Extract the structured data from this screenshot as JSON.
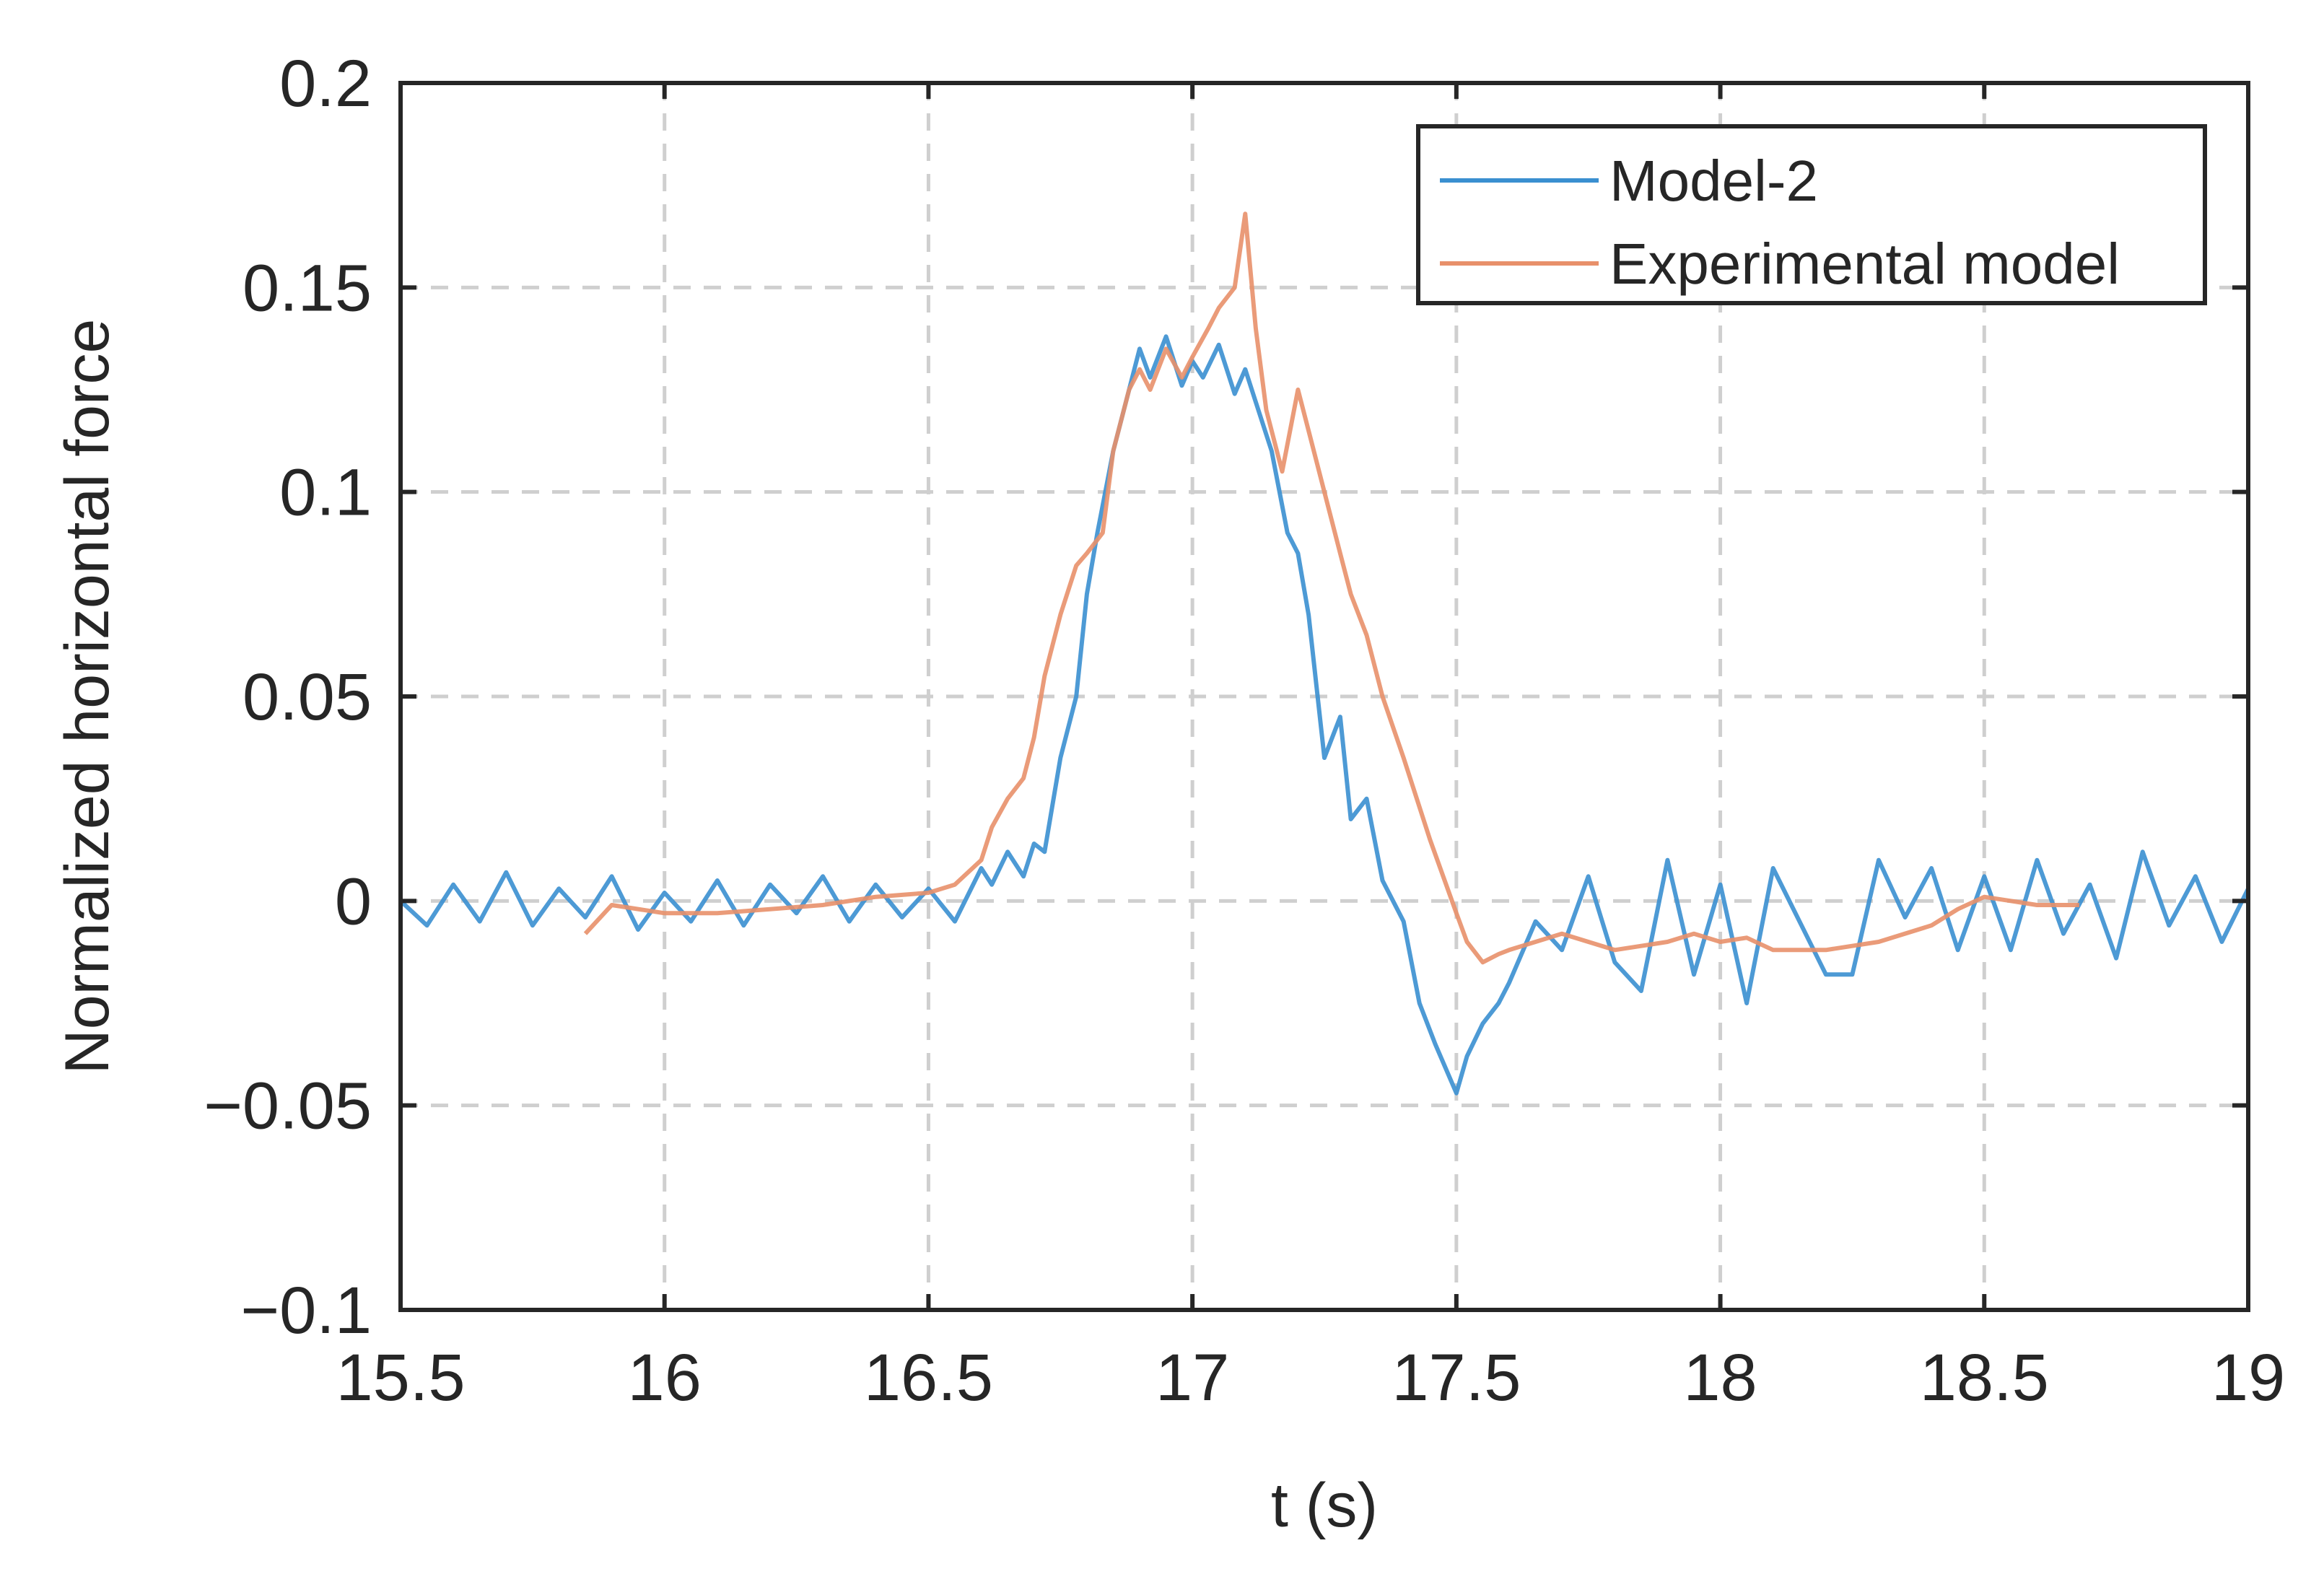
{
  "chart_data": {
    "type": "line",
    "title": "",
    "xlabel": "t (s)",
    "ylabel": "Normalized horizontal force",
    "xlim": [
      15.5,
      19
    ],
    "ylim": [
      -0.1,
      0.2
    ],
    "xticks": [
      15.5,
      16,
      16.5,
      17,
      17.5,
      18,
      18.5,
      19
    ],
    "xtick_labels": [
      "15.5",
      "16",
      "16.5",
      "17",
      "17.5",
      "18",
      "18.5",
      "19"
    ],
    "yticks": [
      -0.1,
      -0.05,
      0,
      0.05,
      0.1,
      0.15,
      0.2
    ],
    "ytick_labels": [
      "−0.1",
      "−0.05",
      "0",
      "0.05",
      "0.1",
      "0.15",
      "0.2"
    ],
    "grid": true,
    "legend_position": "top-right",
    "series": [
      {
        "name": "Model-2",
        "color": "#3a8fd0",
        "x": [
          15.5,
          15.55,
          15.6,
          15.65,
          15.7,
          15.75,
          15.8,
          15.85,
          15.9,
          15.95,
          16.0,
          16.05,
          16.1,
          16.15,
          16.2,
          16.25,
          16.3,
          16.35,
          16.4,
          16.45,
          16.5,
          16.55,
          16.6,
          16.62,
          16.65,
          16.68,
          16.7,
          16.72,
          16.75,
          16.78,
          16.8,
          16.82,
          16.85,
          16.88,
          16.9,
          16.92,
          16.95,
          16.98,
          17.0,
          17.02,
          17.05,
          17.08,
          17.1,
          17.12,
          17.15,
          17.18,
          17.2,
          17.22,
          17.25,
          17.28,
          17.3,
          17.33,
          17.36,
          17.4,
          17.43,
          17.46,
          17.5,
          17.52,
          17.55,
          17.58,
          17.6,
          17.65,
          17.7,
          17.75,
          17.8,
          17.85,
          17.9,
          17.95,
          18.0,
          18.05,
          18.1,
          18.15,
          18.2,
          18.25,
          18.3,
          18.35,
          18.4,
          18.45,
          18.5,
          18.55,
          18.6,
          18.65,
          18.7,
          18.75,
          18.8,
          18.85,
          18.9,
          18.95,
          19.0
        ],
        "values": [
          0.0,
          -0.006,
          0.004,
          -0.005,
          0.007,
          -0.006,
          0.003,
          -0.004,
          0.006,
          -0.007,
          0.002,
          -0.005,
          0.005,
          -0.006,
          0.004,
          -0.003,
          0.006,
          -0.005,
          0.004,
          -0.004,
          0.003,
          -0.005,
          0.008,
          0.004,
          0.012,
          0.006,
          0.014,
          0.012,
          0.035,
          0.05,
          0.075,
          0.09,
          0.11,
          0.125,
          0.135,
          0.128,
          0.138,
          0.126,
          0.132,
          0.128,
          0.136,
          0.124,
          0.13,
          0.122,
          0.11,
          0.09,
          0.085,
          0.07,
          0.035,
          0.045,
          0.02,
          0.025,
          0.005,
          -0.005,
          -0.025,
          -0.035,
          -0.047,
          -0.038,
          -0.03,
          -0.025,
          -0.02,
          -0.005,
          -0.012,
          0.006,
          -0.015,
          -0.022,
          0.01,
          -0.018,
          0.004,
          -0.025,
          0.008,
          -0.005,
          -0.018,
          -0.018,
          0.01,
          -0.004,
          0.008,
          -0.012,
          0.006,
          -0.012,
          0.01,
          -0.008,
          0.004,
          -0.014,
          0.012,
          -0.006,
          0.006,
          -0.01,
          0.003
        ]
      },
      {
        "name": "Experimental model",
        "color": "#e8906a",
        "x": [
          15.85,
          15.9,
          16.0,
          16.1,
          16.2,
          16.3,
          16.4,
          16.5,
          16.55,
          16.6,
          16.62,
          16.65,
          16.68,
          16.7,
          16.72,
          16.75,
          16.78,
          16.8,
          16.83,
          16.85,
          16.88,
          16.9,
          16.92,
          16.95,
          16.98,
          17.0,
          17.03,
          17.05,
          17.08,
          17.1,
          17.12,
          17.14,
          17.17,
          17.2,
          17.22,
          17.25,
          17.28,
          17.3,
          17.33,
          17.36,
          17.4,
          17.45,
          17.5,
          17.52,
          17.55,
          17.58,
          17.6,
          17.65,
          17.7,
          17.75,
          17.8,
          17.85,
          17.9,
          17.95,
          18.0,
          18.05,
          18.1,
          18.2,
          18.3,
          18.4,
          18.45,
          18.5,
          18.55,
          18.6,
          18.65,
          18.68
        ],
        "values": [
          -0.008,
          -0.001,
          -0.003,
          -0.003,
          -0.002,
          -0.001,
          0.001,
          0.002,
          0.004,
          0.01,
          0.018,
          0.025,
          0.03,
          0.04,
          0.055,
          0.07,
          0.082,
          0.085,
          0.09,
          0.11,
          0.125,
          0.13,
          0.125,
          0.135,
          0.128,
          0.133,
          0.14,
          0.145,
          0.15,
          0.168,
          0.14,
          0.12,
          0.105,
          0.125,
          0.115,
          0.1,
          0.085,
          0.075,
          0.065,
          0.05,
          0.035,
          0.015,
          -0.003,
          -0.01,
          -0.015,
          -0.013,
          -0.012,
          -0.01,
          -0.008,
          -0.01,
          -0.012,
          -0.011,
          -0.01,
          -0.008,
          -0.01,
          -0.009,
          -0.012,
          -0.012,
          -0.01,
          -0.006,
          -0.002,
          0.001,
          0.0,
          -0.001,
          -0.001,
          -0.001
        ]
      }
    ]
  }
}
